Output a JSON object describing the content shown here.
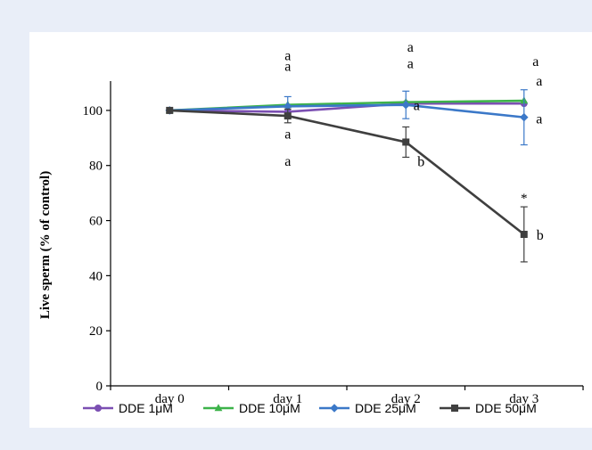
{
  "chart_data": {
    "type": "line",
    "title": "",
    "ylabel": "Live sperm (% of control)",
    "xlabel": "",
    "categories": [
      "day 0",
      "day 1",
      "day 2",
      "day 3"
    ],
    "ylim": [
      0,
      110
    ],
    "yticks": [
      0,
      20,
      40,
      60,
      80,
      100
    ],
    "legend_position": "bottom",
    "series": [
      {
        "name": "DDE 1μM",
        "color": "#7b4fb2",
        "marker": "circle",
        "values": [
          100,
          99.5,
          102.5,
          102.5
        ],
        "error": [
          0,
          0,
          0,
          0
        ],
        "letters": [
          "",
          "a",
          "a",
          "a"
        ]
      },
      {
        "name": "DDE 10μM",
        "color": "#3db34a",
        "marker": "triangle",
        "values": [
          100,
          102,
          103,
          103.5
        ],
        "error": [
          0,
          0,
          0,
          0
        ],
        "letters": [
          "",
          "a",
          "a",
          "a"
        ]
      },
      {
        "name": "DDE 25μM",
        "color": "#3b78c8",
        "marker": "diamond",
        "values": [
          100,
          101.5,
          102,
          97.5
        ],
        "error": [
          0,
          3.5,
          5,
          10
        ],
        "letters": [
          "",
          "a",
          "a",
          "a"
        ]
      },
      {
        "name": "DDE 50μM",
        "color": "#3f3f3f",
        "marker": "square",
        "values": [
          100,
          98,
          88.5,
          55
        ],
        "error": [
          0,
          2.5,
          5.5,
          10
        ],
        "letters": [
          "",
          "a",
          "b",
          "b"
        ],
        "significance": [
          "",
          "",
          "",
          "*"
        ]
      }
    ]
  }
}
